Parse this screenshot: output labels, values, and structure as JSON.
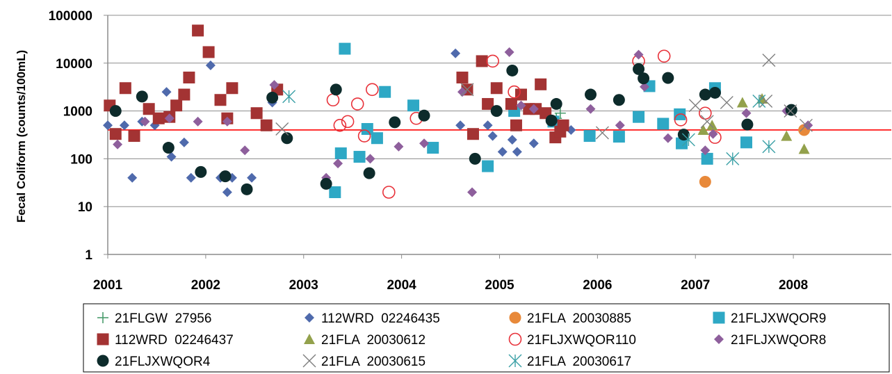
{
  "chart_data": {
    "type": "scatter",
    "title": "",
    "xlabel": "",
    "ylabel": "Fecal Coliform (counts/100mL)",
    "y_scale": "log",
    "ylim": [
      1,
      100000
    ],
    "xlim": [
      2001,
      2009
    ],
    "x_ticks": [
      "2001",
      "2002",
      "2003",
      "2004",
      "2005",
      "2006",
      "2007",
      "2008"
    ],
    "y_ticks": [
      "1",
      "10",
      "100",
      "1000",
      "10000",
      "100000"
    ],
    "grid": "horizontal",
    "legend_position": "bottom",
    "reference_line": {
      "y": 400,
      "color": "#ff0000"
    },
    "series": [
      {
        "name": "21FLGW  27956",
        "marker": "plus",
        "color": "#4a9c6d",
        "x": [
          2005.58,
          2005.62
        ],
        "y": [
          700,
          900
        ]
      },
      {
        "name": "112WRD  02246435",
        "marker": "diamond",
        "color": "#4f6aac",
        "x": [
          2001.0,
          2001.17,
          2001.25,
          2001.35,
          2001.48,
          2001.6,
          2001.65,
          2001.78,
          2001.85,
          2002.05,
          2002.15,
          2002.22,
          2002.27,
          2002.47,
          2002.68,
          2004.55,
          2004.6,
          2004.88,
          2004.93,
          2005.03,
          2005.13,
          2005.18,
          2005.35,
          2005.73
        ],
        "y": [
          500,
          500,
          40,
          600,
          500,
          2500,
          110,
          220,
          40,
          9000,
          40,
          20,
          40,
          40,
          1500,
          16000,
          500,
          500,
          300,
          140,
          250,
          140,
          210,
          400
        ]
      },
      {
        "name": "21FLA  20030885",
        "marker": "circle",
        "color": "#e8893a",
        "x": [
          2007.1,
          2008.11
        ],
        "y": [
          33,
          400
        ]
      },
      {
        "name": "21FLJXWQOR9",
        "marker": "square",
        "color": "#2ea8c5",
        "x": [
          2003.32,
          2003.38,
          2003.42,
          2003.57,
          2003.65,
          2003.75,
          2003.83,
          2004.12,
          2004.32,
          2004.88,
          2005.15,
          2005.55,
          2005.92,
          2006.22,
          2006.42,
          2006.53,
          2006.67,
          2006.84,
          2006.86,
          2007.12,
          2007.2,
          2007.52
        ],
        "y": [
          20,
          130,
          20000,
          110,
          420,
          270,
          2500,
          1300,
          170,
          70,
          1000,
          600,
          300,
          290,
          750,
          3300,
          540,
          850,
          210,
          100,
          3000,
          220
        ]
      },
      {
        "name": "112WRD  02246437",
        "marker": "square",
        "color": "#a33333",
        "x": [
          2001.02,
          2001.08,
          2001.18,
          2001.27,
          2001.42,
          2001.52,
          2001.63,
          2001.7,
          2001.78,
          2001.83,
          2001.92,
          2002.03,
          2002.15,
          2002.22,
          2002.27,
          2002.52,
          2002.62,
          2002.73,
          2004.62,
          2004.67,
          2004.73,
          2004.82,
          2004.88,
          2004.97,
          2005.12,
          2005.17,
          2005.22,
          2005.3,
          2005.37,
          2005.42,
          2005.47,
          2005.57,
          2005.62,
          2005.65
        ],
        "y": [
          1300,
          330,
          3000,
          300,
          1100,
          700,
          750,
          1300,
          2200,
          5000,
          48000,
          17000,
          1700,
          700,
          3000,
          900,
          500,
          2800,
          5000,
          2800,
          330,
          11000,
          1400,
          3000,
          1400,
          500,
          2200,
          1100,
          1100,
          3600,
          900,
          280,
          370,
          500
        ]
      },
      {
        "name": "21FLA  20030612",
        "marker": "triangle",
        "color": "#93a14c",
        "x": [
          2007.08,
          2007.17,
          2007.48,
          2007.68,
          2007.93,
          2008.11
        ],
        "y": [
          400,
          500,
          1500,
          1800,
          300,
          160
        ]
      },
      {
        "name": "21FLJXWQOR110",
        "marker": "circle-open",
        "color": "#e8323a",
        "x": [
          2003.3,
          2003.37,
          2003.45,
          2003.55,
          2003.62,
          2003.7,
          2003.87,
          2004.15,
          2004.93,
          2005.15,
          2006.42,
          2006.68,
          2006.85,
          2007.1,
          2007.2
        ],
        "y": [
          1700,
          500,
          600,
          1400,
          300,
          2800,
          20,
          700,
          11000,
          2500,
          11000,
          14000,
          650,
          900,
          280
        ]
      },
      {
        "name": "21FLJXWQOR8",
        "marker": "diamond",
        "color": "#8e5f9c",
        "x": [
          2001.1,
          2001.38,
          2001.63,
          2001.92,
          2002.22,
          2002.4,
          2002.7,
          2003.23,
          2003.35,
          2003.68,
          2003.97,
          2004.23,
          2004.62,
          2004.72,
          2005.1,
          2005.22,
          2005.35,
          2005.93,
          2006.23,
          2006.42,
          2006.48,
          2006.72,
          2007.1,
          2007.18,
          2007.52,
          2007.93,
          2008.15
        ],
        "y": [
          200,
          600,
          700,
          600,
          600,
          150,
          3500,
          40,
          80,
          100,
          180,
          210,
          2500,
          20,
          17000,
          1300,
          1100,
          1100,
          500,
          15000,
          3200,
          270,
          150,
          330,
          900,
          1000,
          500
        ]
      },
      {
        "name": "21FLJXWQOR4",
        "marker": "circle",
        "color": "#0d2b2b",
        "x": [
          2001.08,
          2001.35,
          2001.62,
          2001.95,
          2002.2,
          2002.42,
          2002.68,
          2002.83,
          2003.23,
          2003.33,
          2003.67,
          2003.93,
          2004.23,
          2004.75,
          2004.97,
          2005.13,
          2005.53,
          2005.58,
          2005.93,
          2006.22,
          2006.42,
          2006.47,
          2006.72,
          2006.88,
          2007.1,
          2007.2,
          2007.53,
          2007.98
        ],
        "y": [
          1000,
          2000,
          170,
          53,
          43,
          23,
          1900,
          270,
          30,
          2800,
          50,
          580,
          800,
          100,
          1000,
          7000,
          630,
          1400,
          2200,
          1700,
          7500,
          4800,
          4900,
          320,
          2200,
          2400,
          520,
          1050
        ]
      },
      {
        "name": "21FLA  20030615",
        "marker": "x",
        "color": "#7f7f7f",
        "x": [
          2002.78,
          2004.67,
          2006.05,
          2007.0,
          2007.12,
          2007.32,
          2007.72,
          2007.75,
          2007.97,
          2008.13
        ],
        "y": [
          420,
          2800,
          350,
          1300,
          600,
          1500,
          1600,
          11500,
          1000,
          500
        ]
      },
      {
        "name": "21FLA  20030617",
        "marker": "asterisk",
        "color": "#3aa0a6",
        "x": [
          2002.85,
          2006.93,
          2007.38,
          2007.65,
          2007.75
        ],
        "y": [
          2000,
          250,
          100,
          1600,
          180
        ]
      }
    ]
  }
}
